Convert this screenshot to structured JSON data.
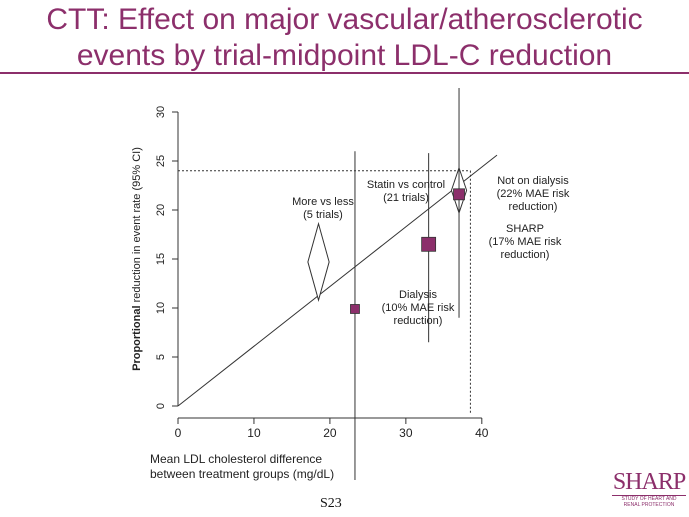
{
  "slide": {
    "title_line1": "CTT: Effect on major vascular/atherosclerotic",
    "title_line2": "events by trial-midpoint LDL-C reduction",
    "slide_number": "S23",
    "logo_text": "SHARP",
    "logo_subtext_1": "STUDY OF HEART AND",
    "logo_subtext_2": "RENAL PROTECTION",
    "accent_color": "#8c2f6b"
  },
  "chart_data": {
    "type": "scatter",
    "xlabel_line1": "Mean LDL cholesterol difference",
    "xlabel_line2": "between treatment groups (mg/dL)",
    "ylabel_bold": "Proportional",
    "ylabel_rest": " reduction  in event  rate  (95% CI)",
    "xlim": [
      0,
      42
    ],
    "ylim": [
      0,
      30
    ],
    "xticks": [
      0,
      10,
      20,
      30,
      40
    ],
    "yticks": [
      0,
      5,
      10,
      15,
      20,
      25,
      30
    ],
    "regression_line": {
      "x": [
        0,
        42
      ],
      "y": [
        0,
        25.6
      ]
    },
    "reference_line": {
      "y": 24,
      "x_end": 38.5
    },
    "diamonds": [
      {
        "name": "More vs less",
        "x": 18.5,
        "y": 14.7,
        "y_low": 10.8,
        "y_high": 18.6,
        "half_width": 1.4
      },
      {
        "name": "Statin vs control",
        "x": 37.0,
        "y": 22.0,
        "y_low": 19.7,
        "y_high": 24.3,
        "half_width": 1.0
      }
    ],
    "points": [
      {
        "name": "Dialysis",
        "x": 23.3,
        "y": 9.9,
        "y_low": -8.0,
        "y_high": 26.0,
        "size": "small"
      },
      {
        "name": "SHARP",
        "x": 33.0,
        "y": 16.5,
        "y_low": 6.5,
        "y_high": 25.8,
        "size": "large"
      },
      {
        "name": "Not on dialysis",
        "x": 37.0,
        "y": 21.6,
        "y_low": 9.0,
        "y_high": 33.0,
        "size": "medium"
      }
    ],
    "vertical_dashed_x": 38.5,
    "labels": [
      {
        "line1": "More vs less",
        "line2": "(5 trials)",
        "line3": ""
      },
      {
        "line1": "Statin vs control",
        "line2": "(21 trials)",
        "line3": ""
      },
      {
        "line1": "Not on dialysis",
        "line2": "(22% MAE  risk",
        "line3": "reduction)"
      },
      {
        "line1": "SHARP",
        "line2": "(17% MAE  risk",
        "line3": "reduction)"
      },
      {
        "line1": "Dialysis",
        "line2": "(10% MAE  risk",
        "line3": "reduction)"
      }
    ],
    "marker_color": "#8c2f6b"
  }
}
